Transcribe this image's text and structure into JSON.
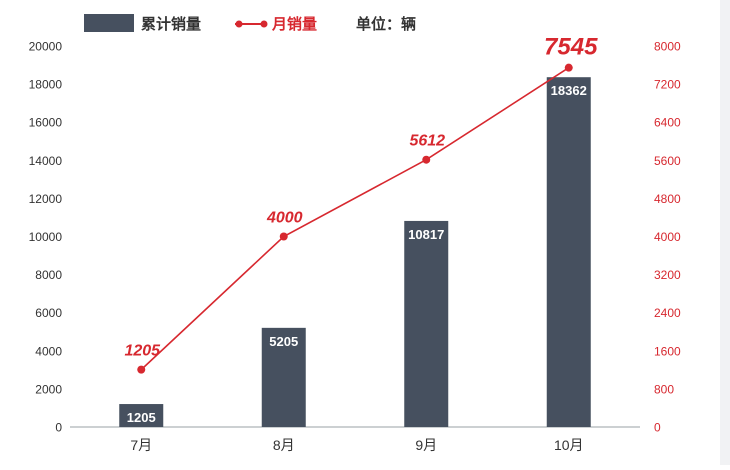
{
  "chart_data": {
    "type": "bar",
    "categories": [
      "7月",
      "8月",
      "9月",
      "10月"
    ],
    "series": [
      {
        "name": "累计销量",
        "kind": "bar",
        "axis": "left",
        "values": [
          1205,
          5205,
          10817,
          18362
        ],
        "color": "#46505f"
      },
      {
        "name": "月销量",
        "kind": "line",
        "axis": "right",
        "values": [
          1205,
          4000,
          5612,
          7545
        ],
        "color": "#d7282f"
      }
    ],
    "legend": {
      "unit_label": "单位：辆",
      "placement": "top"
    },
    "y_left": {
      "ticks": [
        "0",
        "2000",
        "4000",
        "6000",
        "8000",
        "10000",
        "12000",
        "14000",
        "16000",
        "18000",
        "20000"
      ],
      "ylim": [
        0,
        20000
      ]
    },
    "y_right": {
      "ticks": [
        "0",
        "800",
        "1600",
        "2400",
        "3200",
        "4000",
        "4800",
        "5600",
        "6400",
        "7200",
        "8000"
      ],
      "ylim": [
        0,
        8000
      ]
    },
    "grid": false,
    "colors": {
      "bar": "#46505f",
      "line": "#d7282f",
      "axis_text": "#333333",
      "right_axis_text": "#d7282f"
    }
  }
}
